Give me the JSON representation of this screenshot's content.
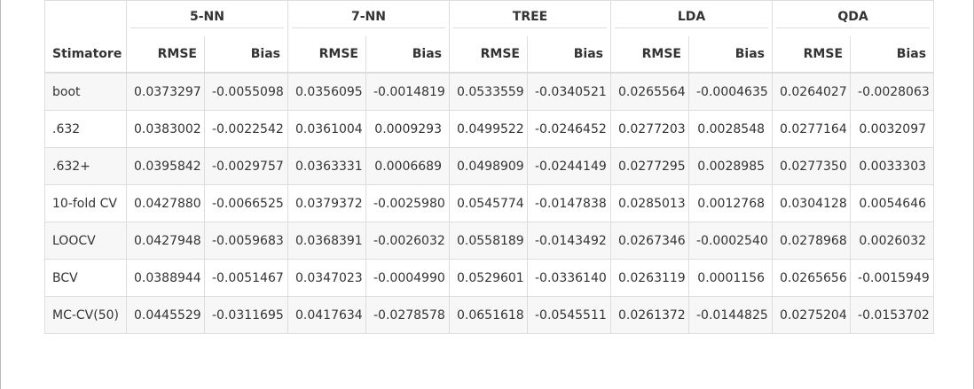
{
  "table": {
    "corner_label": "Stimatore",
    "groups": [
      "5-NN",
      "7-NN",
      "TREE",
      "LDA",
      "QDA"
    ],
    "sub_headers": [
      "RMSE",
      "Bias"
    ],
    "rows": [
      {
        "label": "boot",
        "values": [
          "0.0373297",
          "-0.0055098",
          "0.0356095",
          "-0.0014819",
          "0.0533559",
          "-0.0340521",
          "0.0265564",
          "-0.0004635",
          "0.0264027",
          "-0.0028063"
        ]
      },
      {
        "label": ".632",
        "values": [
          "0.0383002",
          "-0.0022542",
          "0.0361004",
          "0.0009293",
          "0.0499522",
          "-0.0246452",
          "0.0277203",
          "0.0028548",
          "0.0277164",
          "0.0032097"
        ]
      },
      {
        "label": ".632+",
        "values": [
          "0.0395842",
          "-0.0029757",
          "0.0363331",
          "0.0006689",
          "0.0498909",
          "-0.0244149",
          "0.0277295",
          "0.0028985",
          "0.0277350",
          "0.0033303"
        ]
      },
      {
        "label": "10-fold CV",
        "values": [
          "0.0427880",
          "-0.0066525",
          "0.0379372",
          "-0.0025980",
          "0.0545774",
          "-0.0147838",
          "0.0285013",
          "0.0012768",
          "0.0304128",
          "0.0054646"
        ]
      },
      {
        "label": "LOOCV",
        "values": [
          "0.0427948",
          "-0.0059683",
          "0.0368391",
          "-0.0026032",
          "0.0558189",
          "-0.0143492",
          "0.0267346",
          "-0.0002540",
          "0.0278968",
          "0.0026032"
        ]
      },
      {
        "label": "BCV",
        "values": [
          "0.0388944",
          "-0.0051467",
          "0.0347023",
          "-0.0004990",
          "0.0529601",
          "-0.0336140",
          "0.0263119",
          "0.0001156",
          "0.0265656",
          "-0.0015949"
        ]
      },
      {
        "label": "MC-CV(50)",
        "values": [
          "0.0445529",
          "-0.0311695",
          "0.0417634",
          "-0.0278578",
          "0.0651618",
          "-0.0545511",
          "0.0261372",
          "-0.0144825",
          "0.0275204",
          "-0.0153702"
        ]
      }
    ]
  }
}
